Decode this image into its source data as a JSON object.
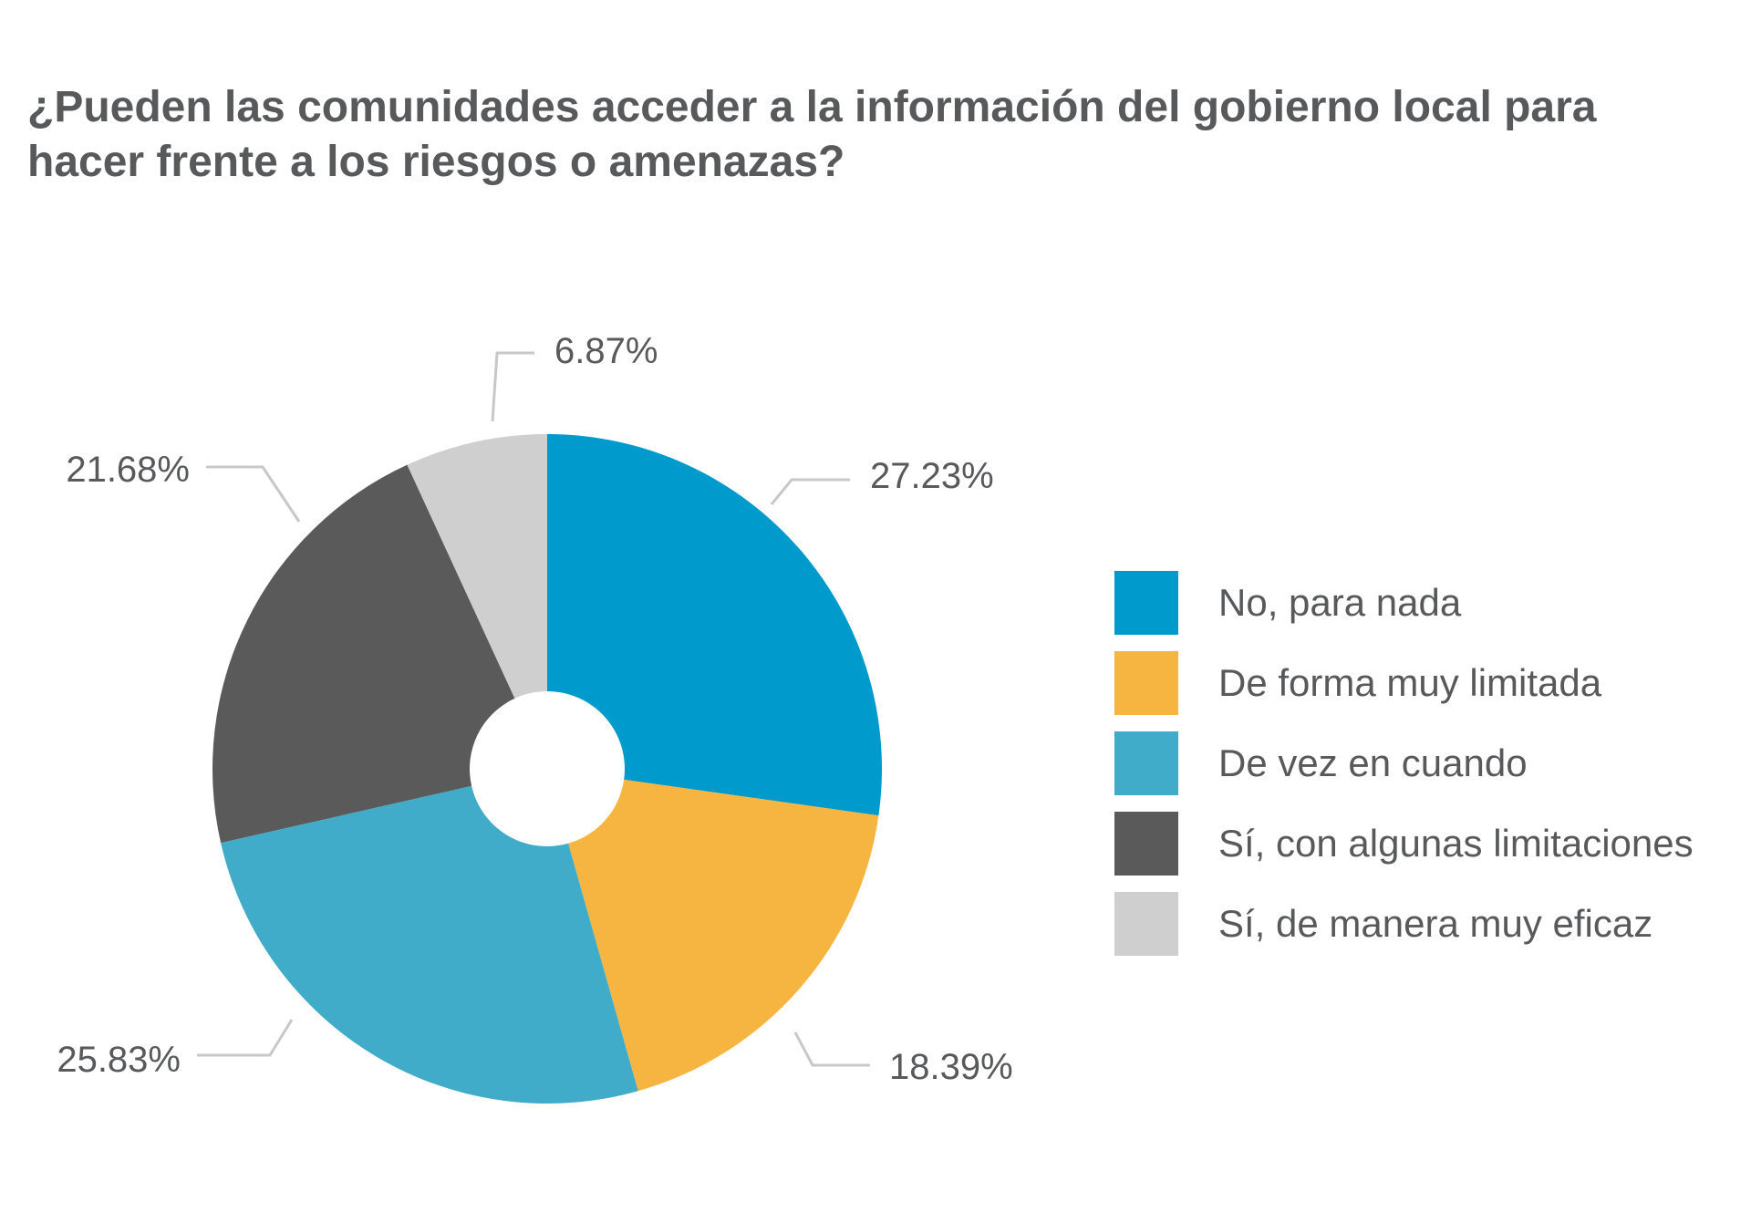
{
  "chart_data": {
    "type": "pie",
    "title": "¿Pueden las comunidades acceder a la información del gobierno local para hacer frente a los riesgos o amenazas?",
    "legend_placement": "right",
    "categories": [
      "No, para nada",
      "De forma muy limitada",
      "De vez en cuando",
      "Sí, con algunas limitaciones",
      "Sí, de manera muy eficaz"
    ],
    "values": [
      27.23,
      18.39,
      25.83,
      21.68,
      6.87
    ],
    "value_labels": [
      "27.23%",
      "18.39%",
      "25.83%",
      "21.68%",
      "6.87%"
    ],
    "colors": [
      "#009acd",
      "#f6b540",
      "#40acc9",
      "#5a5a5a",
      "#cfcfcf"
    ]
  }
}
